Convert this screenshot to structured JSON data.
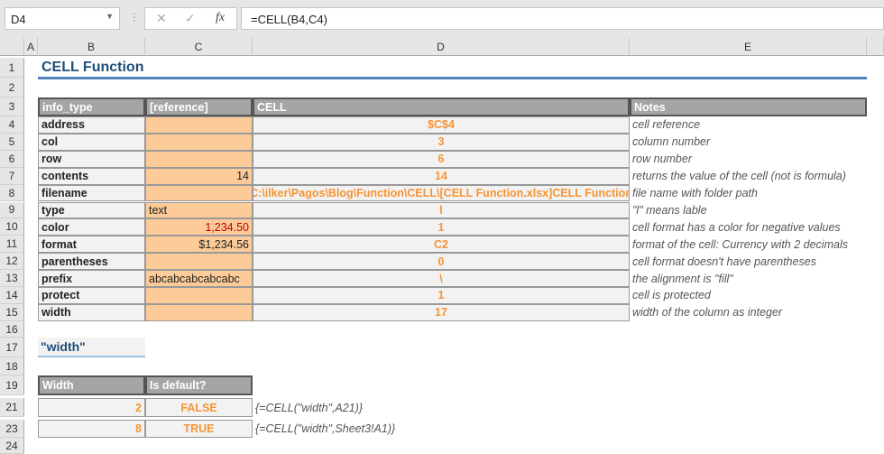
{
  "formula_bar": {
    "name_box": "D4",
    "formula": "=CELL(B4,C4)",
    "cancel_icon": "✕",
    "enter_icon": "✓",
    "fx_label": "fx"
  },
  "columns": [
    "A",
    "B",
    "C",
    "D",
    "E"
  ],
  "title": "CELL Function",
  "table1": {
    "headers": [
      "info_type",
      "[reference]",
      "CELL",
      "Notes"
    ],
    "rows": [
      {
        "row": "4",
        "b": "address",
        "c": "",
        "d": "$C$4",
        "e": "cell reference"
      },
      {
        "row": "5",
        "b": "col",
        "c": "",
        "d": "3",
        "e": "column number"
      },
      {
        "row": "6",
        "b": "row",
        "c": "",
        "d": "6",
        "e": "row number"
      },
      {
        "row": "7",
        "b": "contents",
        "c": "14",
        "d": "14",
        "e": "returns the value of the cell (not is formula)"
      },
      {
        "row": "8",
        "b": "filename",
        "c": "",
        "d": "C:\\ilker\\Pagos\\Blog\\Function\\CELL\\[CELL Function.xlsx]CELL Function",
        "e": "file name with folder path"
      },
      {
        "row": "9",
        "b": "type",
        "c": "text",
        "d": "l",
        "e": "\"l\" means lable"
      },
      {
        "row": "10",
        "b": "color",
        "c": "1,234.50",
        "d": "1",
        "e": "cell format has a color for negative values"
      },
      {
        "row": "11",
        "b": "format",
        "c": "$1,234.56",
        "d": "C2",
        "e": "format of the cell: Currency with 2 decimals"
      },
      {
        "row": "12",
        "b": "parentheses",
        "c": "",
        "d": "0",
        "e": "cell format doesn't have parentheses"
      },
      {
        "row": "13",
        "b": "prefix",
        "c": "abcabcabcabcabc",
        "d": "\\",
        "e": "the alignment is \"fill\""
      },
      {
        "row": "14",
        "b": "protect",
        "c": "",
        "d": "1",
        "e": "cell is protected"
      },
      {
        "row": "15",
        "b": "width",
        "c": "",
        "d": "17",
        "e": "width of the column as integer"
      }
    ]
  },
  "section2_title": "\"width\"",
  "table2": {
    "headers": [
      "Width",
      "Is default?"
    ],
    "rows": [
      {
        "row": "21",
        "b": "2",
        "c": "FALSE",
        "d": "{=CELL(\"width\",A21)}"
      },
      {
        "row": "23",
        "b": "8",
        "c": "TRUE",
        "d": "{=CELL(\"width\",Sheet3!A1)}"
      }
    ]
  },
  "row_numbers": [
    "1",
    "2",
    "3",
    "4",
    "5",
    "6",
    "7",
    "8",
    "9",
    "10",
    "11",
    "12",
    "13",
    "14",
    "15",
    "16",
    "17",
    "18",
    "19",
    "21",
    "23",
    "24"
  ],
  "colors": {
    "header_fill": "#a5a5a5",
    "reference_fill": "#fdcb98",
    "result_text": "#f79433",
    "title": "#1f4e79",
    "negative": "#c00000"
  }
}
